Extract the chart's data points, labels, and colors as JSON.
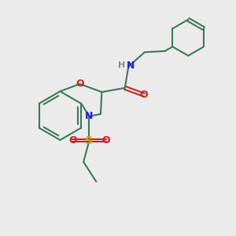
{
  "background_color": "#ebebeb",
  "bond_color": "#3a7a5a",
  "bond_width": 1.5,
  "N_color": "#2222cc",
  "O_color": "#cc2222",
  "S_color": "#ccaa00",
  "H_color": "#888888",
  "font_size": 9,
  "xlim": [
    0,
    10
  ],
  "ylim": [
    0,
    10
  ]
}
